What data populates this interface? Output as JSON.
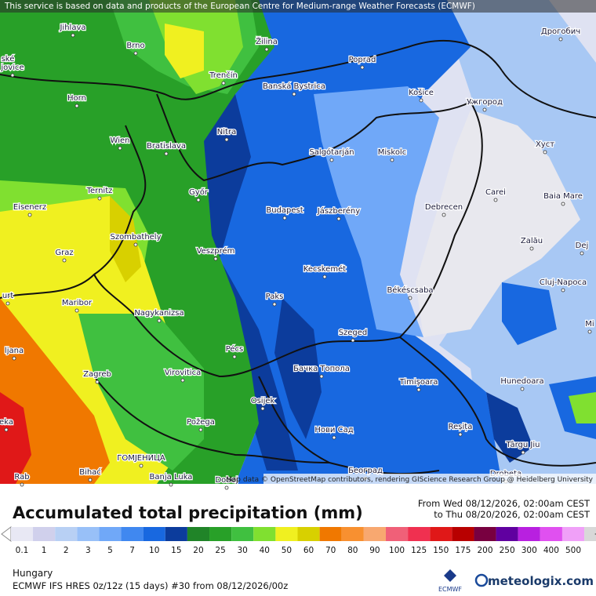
{
  "header": {
    "notice": "This service is based on data and products of the European Centre for Medium-range Weather Forecasts (ECMWF)"
  },
  "map": {
    "attribution": "Map data © OpenStreetMap contributors, rendering GIScience Research Group @ Heidelberg University",
    "cities": [
      "Jihlava",
      "Brno",
      "Žilina",
      "Poprad",
      "Дрогобич",
      "ské",
      "jovice",
      "Trenčín",
      "Banská Bystrica",
      "Horn",
      "Košice",
      "Ужгород",
      "Nitra",
      "Wien",
      "Bratislava",
      "Salgótarján",
      "Miskolc",
      "Хуст",
      "Ternitz",
      "Győr",
      "Carei",
      "Baia Mare",
      "Eisenerz",
      "Budapest",
      "Jászberény",
      "Debrecen",
      "Szombathely",
      "Zalău",
      "Graz",
      "Veszprém",
      "Dej",
      "Kecskemét",
      "Cluj-Napoca",
      "urt",
      "Maribor",
      "Paks",
      "Békéscsaba",
      "Nagykanizsa",
      "Mi",
      "ljana",
      "Szeged",
      "Pécs",
      "Zagreb",
      "Virovitica",
      "Бачка Топола",
      "Timișoara",
      "Hunedoara",
      "Osijek",
      "eka",
      "Požega",
      "Нови Сад",
      "Reșița",
      "Târgu Jiu",
      "ГОМЈЕНИЦА",
      "Bihać",
      "Banja Luka",
      "Doboj",
      "Београд",
      "Drobeta",
      "Rab"
    ]
  },
  "panel": {
    "title": "Accumulated total precipitation (mm)",
    "from": "From Wed 08/12/2026, 02:00am CEST",
    "to": "to Thu 08/20/2026, 02:00am CEST",
    "legend": {
      "labels": [
        "0.1",
        "1",
        "2",
        "3",
        "5",
        "7",
        "10",
        "15",
        "20",
        "25",
        "30",
        "40",
        "50",
        "60",
        "70",
        "80",
        "90",
        "100",
        "125",
        "150",
        "175",
        "200",
        "250",
        "300",
        "400",
        "500"
      ],
      "colors": [
        "#e8e8f4",
        "#d0d0ec",
        "#b8d0f4",
        "#98c0f8",
        "#70a8f8",
        "#4088f0",
        "#1868e0",
        "#0c3c9c",
        "#208428",
        "#28a028",
        "#40c040",
        "#80e030",
        "#f0f020",
        "#d8d000",
        "#f07800",
        "#f89030",
        "#f8a870",
        "#f06078",
        "#f03050",
        "#e01818",
        "#b80000",
        "#780040",
        "#6000a0",
        "#b820e0",
        "#e050f0",
        "#f0a0f8",
        "#d8d8d8"
      ]
    },
    "region": "Hungary",
    "model": "ECMWF IFS HRES 0z/12z (15 days) #30 from  08/12/2026/00z",
    "ecmwf_logo": "ECMWF",
    "brand": "meteologix.com"
  }
}
